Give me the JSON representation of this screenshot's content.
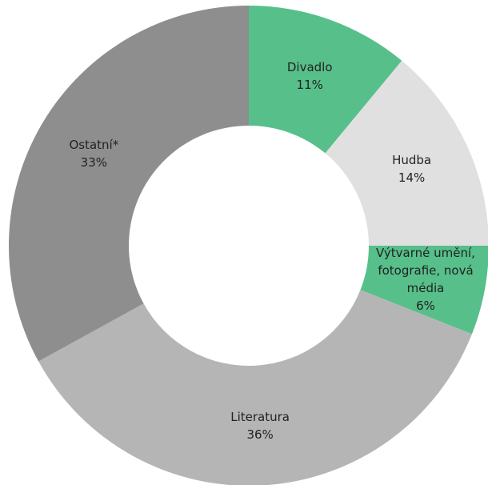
{
  "chart_data": {
    "type": "donut",
    "categories": [
      "Divadlo",
      "Hudba",
      "Výtvarné umění, fotografie, nová média",
      "Literatura",
      "Ostatní*"
    ],
    "values": [
      11,
      14,
      6,
      36,
      33
    ],
    "value_labels": [
      "11%",
      "14%",
      "6%",
      "36%",
      "33%"
    ],
    "colors": [
      "#57bf8a",
      "#e0e0e0",
      "#57bf8a",
      "#b5b5b5",
      "#8e8e8e"
    ]
  }
}
